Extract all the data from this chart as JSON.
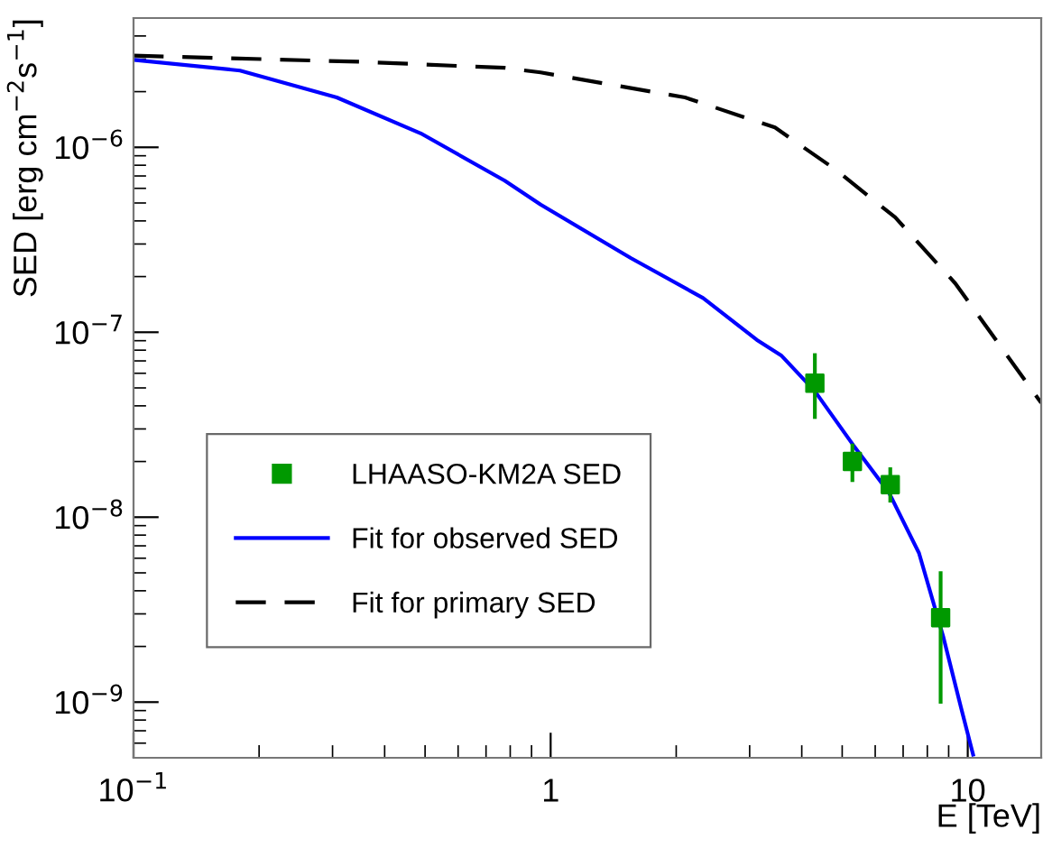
{
  "chart_data": {
    "type": "line",
    "xlabel": "E [TeV]",
    "ylabel": "SED [erg cm$^{−2}$s$^{−1}$]",
    "log": "xy",
    "xlim": [
      0.1,
      15
    ],
    "ylim": [
      5e-10,
      5e-06
    ],
    "xticks": [
      {
        "value": 0.1,
        "label": "10$^{−1}$"
      },
      1,
      10
    ],
    "yticks": [
      {
        "value": 1e-09,
        "label": "10$^{−9}$"
      },
      {
        "value": 1e-08,
        "label": "10$^{−8}$"
      },
      {
        "value": 1e-07,
        "label": "10$^{−7}$"
      },
      {
        "value": 1e-06,
        "label": "10$^{−6}$"
      }
    ],
    "grid": false,
    "legend": "bottom left",
    "series": [
      {
        "name": "LHAASO-KM2A SED",
        "type": "scatter",
        "color": "#009900",
        "marker": "square",
        "x": [
          4.3,
          5.29,
          6.52,
          8.61
        ],
        "values": [
          5.3e-08,
          2e-08,
          1.5e-08,
          2.86e-09
        ],
        "errors": [
          [
            3.4e-08,
            7.7e-08
          ],
          [
            1.55e-08,
            2.5e-08
          ],
          [
            1.2e-08,
            1.86e-08
          ],
          [
            9.8e-10,
            5.1e-09
          ]
        ]
      },
      {
        "name": "Fit for observed SED",
        "color": "#0000ff",
        "line_style": "solid",
        "x": [
          0.1,
          0.18,
          0.307,
          0.488,
          0.776,
          0.946,
          1.556,
          2.32,
          3.12,
          3.57,
          4.3,
          5.31,
          6.47,
          7.64,
          8.73,
          9.64,
          10.3
        ],
        "values": [
          2.97e-06,
          2.6e-06,
          1.86e-06,
          1.19e-06,
          6.6e-07,
          4.9e-07,
          2.52e-07,
          1.53e-07,
          9.1e-08,
          7.5e-08,
          4.8e-08,
          2.46e-08,
          1.36e-08,
          6.4e-09,
          2.27e-09,
          9.3e-10,
          5.2e-10
        ]
      },
      {
        "name": "Fit for primary SED",
        "color": "#000000",
        "line_style": "dashed",
        "x": [
          0.1,
          0.35,
          0.776,
          0.946,
          2.1,
          3.45,
          4.81,
          6.7,
          9.33,
          15.0
        ],
        "values": [
          3.13e-06,
          2.9e-06,
          2.69e-06,
          2.54e-06,
          1.86e-06,
          1.28e-06,
          7.6e-07,
          4.18e-07,
          1.84e-07,
          4.15e-08
        ]
      }
    ]
  }
}
